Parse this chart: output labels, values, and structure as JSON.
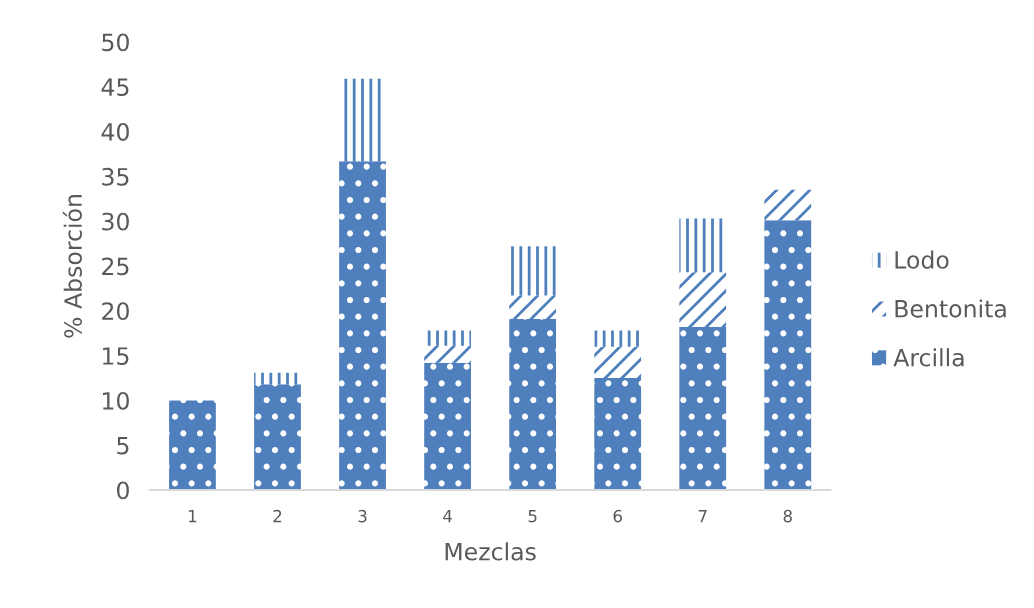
{
  "chart_data": {
    "type": "bar",
    "stacked": true,
    "xlabel": "Mezclas",
    "ylabel": "% Absorción",
    "categories": [
      "1",
      "2",
      "3",
      "4",
      "5",
      "6",
      "7",
      "8"
    ],
    "series": [
      {
        "name": "Arcilla",
        "color": "#4f7fbc",
        "values": [
          10.0,
          11.8,
          36.7,
          14.2,
          19.1,
          12.5,
          18.2,
          30.1
        ]
      },
      {
        "name": "Bentonita",
        "color": "#4f7fbc",
        "values": [
          null,
          null,
          null,
          1.9,
          2.6,
          3.5,
          6.1,
          3.4
        ]
      },
      {
        "name": "Lodo",
        "color": "#4f7fbc",
        "values": [
          null,
          1.3,
          9.2,
          1.7,
          5.5,
          1.8,
          6.0,
          null
        ]
      }
    ],
    "ylim": [
      0,
      50
    ],
    "yticks": [
      0,
      5,
      10,
      15,
      20,
      25,
      30,
      35,
      40,
      45,
      50
    ],
    "grid": false,
    "legend": "right"
  }
}
